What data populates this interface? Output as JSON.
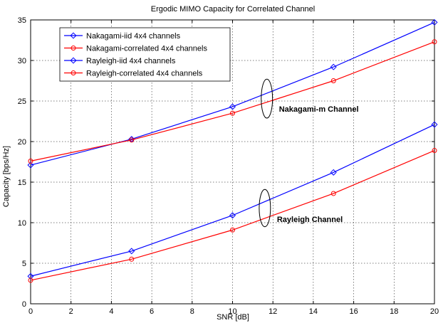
{
  "chart_data": {
    "type": "line",
    "title": "Ergodic MIMO Capacity for Correlated Channel",
    "xlabel": "SNR [dB]",
    "ylabel": "Capacity [bps/Hz]",
    "xlim": [
      0,
      20
    ],
    "ylim": [
      0,
      35
    ],
    "xticks": [
      "0",
      "2",
      "4",
      "6",
      "8",
      "10",
      "12",
      "14",
      "16",
      "18",
      "20"
    ],
    "yticks": [
      "0",
      "5",
      "10",
      "15",
      "20",
      "25",
      "30",
      "35"
    ],
    "grid": true,
    "legend_position": "top-left",
    "x": [
      0,
      5,
      10,
      15,
      20
    ],
    "series": [
      {
        "name": "Nakagami-iid 4x4 channels",
        "values": [
          17.1,
          20.3,
          24.3,
          29.2,
          34.7
        ],
        "color": "#0000ff",
        "marker": "diamond"
      },
      {
        "name": "Nakagami-correlated 4x4 channels",
        "values": [
          17.6,
          20.2,
          23.5,
          27.5,
          32.3
        ],
        "color": "#ff0000",
        "marker": "circle"
      },
      {
        "name": "Rayleigh-iid 4x4 channels",
        "values": [
          3.4,
          6.5,
          10.9,
          16.2,
          22.1
        ],
        "color": "#0000ff",
        "marker": "diamond"
      },
      {
        "name": "Rayleigh-correlated 4x4 channels",
        "values": [
          2.9,
          5.5,
          9.1,
          13.6,
          18.9
        ],
        "color": "#ff0000",
        "marker": "circle"
      }
    ],
    "annotations": [
      {
        "text": "Nakagami-m Channel",
        "x": 12.3,
        "y": 23.7
      },
      {
        "text": "Rayleigh Channel",
        "x": 12.2,
        "y": 10.1
      }
    ],
    "ellipses": [
      {
        "name": "nakagami-ellipse",
        "cx": 11.7,
        "cy": 25.3,
        "rx": 0.28,
        "ry": 2.4
      },
      {
        "name": "rayleigh-ellipse",
        "cx": 11.6,
        "cy": 11.8,
        "rx": 0.28,
        "ry": 2.3
      }
    ]
  }
}
